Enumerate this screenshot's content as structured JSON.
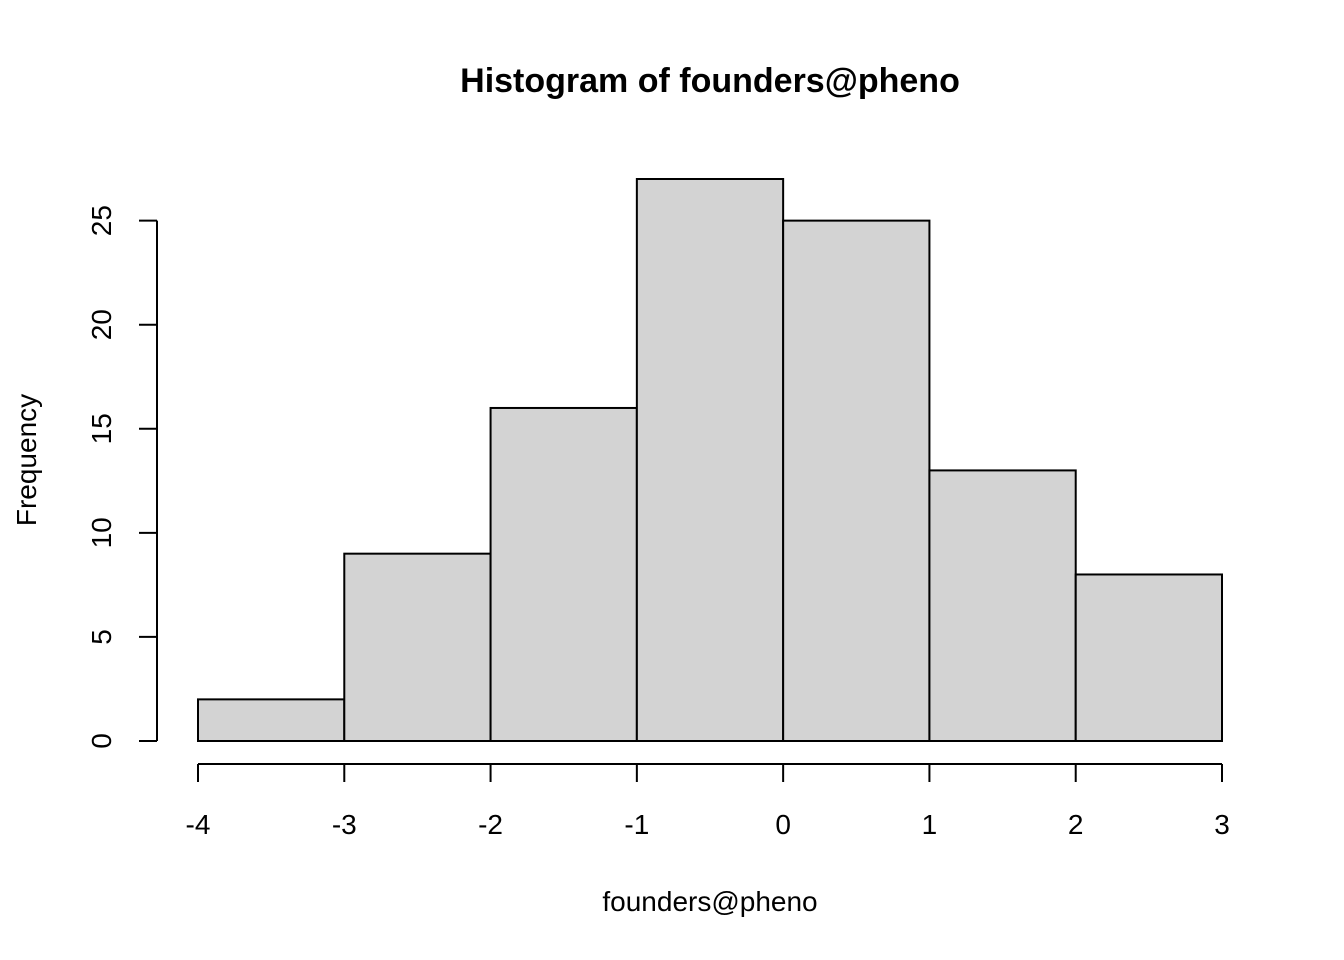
{
  "chart_data": {
    "type": "bar",
    "title": "Histogram of founders@pheno",
    "xlabel": "founders@pheno",
    "ylabel": "Frequency",
    "bins": [
      {
        "from": -4,
        "to": -3,
        "count": 2
      },
      {
        "from": -3,
        "to": -2,
        "count": 9
      },
      {
        "from": -2,
        "to": -1,
        "count": 16
      },
      {
        "from": -1,
        "to": 0,
        "count": 27
      },
      {
        "from": 0,
        "to": 1,
        "count": 25
      },
      {
        "from": 1,
        "to": 2,
        "count": 13
      },
      {
        "from": 2,
        "to": 3,
        "count": 8
      }
    ],
    "xlim": [
      -4,
      3
    ],
    "ylim": [
      0,
      27
    ],
    "x_ticks": [
      -4,
      -3,
      -2,
      -1,
      0,
      1,
      2,
      3
    ],
    "x_tick_labels": [
      "-4",
      "-3",
      "-2",
      "-1",
      "0",
      "1",
      "2",
      "3"
    ],
    "y_ticks": [
      0,
      5,
      10,
      15,
      20,
      25
    ],
    "y_tick_labels": [
      "0",
      "5",
      "10",
      "15",
      "20",
      "25"
    ],
    "colors": {
      "bar_fill": "#d3d3d3",
      "bar_stroke": "#000000",
      "background": "#ffffff"
    },
    "grid": false,
    "legend": "none"
  }
}
